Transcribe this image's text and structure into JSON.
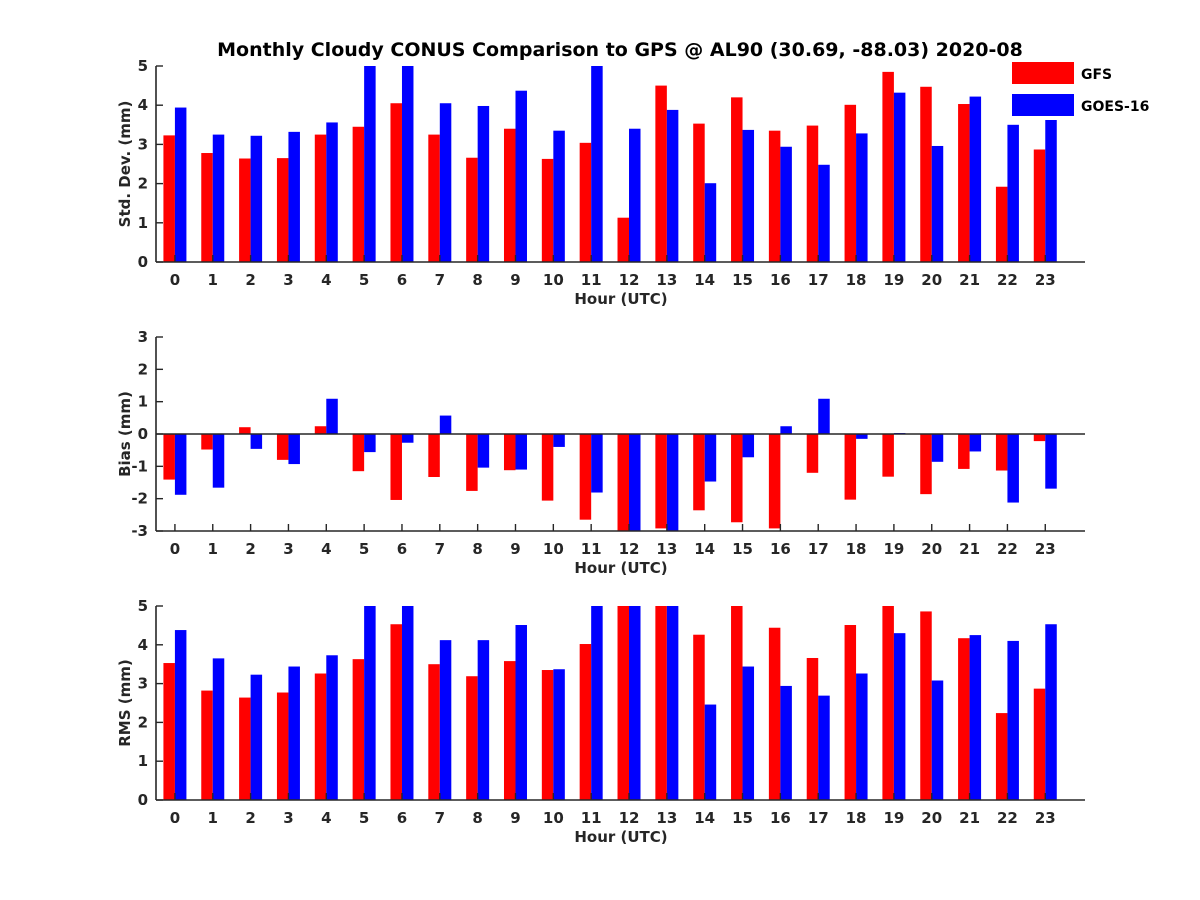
{
  "title": "Monthly Cloudy CONUS Comparison to GPS @ AL90 (30.69, -88.03) 2020-08",
  "legend": [
    {
      "name": "GFS",
      "color": "#ff0000"
    },
    {
      "name": "GOES-16",
      "color": "#0000ff"
    }
  ],
  "chart_data": [
    {
      "type": "bar",
      "title": "Monthly Cloudy CONUS Comparison to GPS @ AL90 (30.69, -88.03) 2020-08",
      "xlabel": "Hour (UTC)",
      "ylabel": "Std. Dev. (mm)",
      "ylim": [
        0,
        5
      ],
      "yticks": [
        "0",
        "1",
        "2",
        "3",
        "4",
        "5"
      ],
      "categories": [
        "0",
        "1",
        "2",
        "3",
        "4",
        "5",
        "6",
        "7",
        "8",
        "9",
        "10",
        "11",
        "12",
        "13",
        "14",
        "15",
        "16",
        "17",
        "18",
        "19",
        "20",
        "21",
        "22",
        "23"
      ],
      "series": [
        {
          "name": "GFS",
          "color": "#ff0000",
          "values": [
            3.23,
            2.78,
            2.64,
            2.65,
            3.25,
            3.45,
            4.05,
            3.25,
            2.66,
            3.4,
            2.63,
            3.04,
            1.13,
            4.5,
            3.53,
            4.2,
            3.35,
            3.48,
            4.01,
            4.85,
            4.47,
            4.03,
            1.92,
            2.87
          ]
        },
        {
          "name": "GOES-16",
          "color": "#0000ff",
          "values": [
            3.94,
            3.25,
            3.22,
            3.32,
            3.56,
            5.0,
            5.0,
            4.05,
            3.98,
            4.37,
            3.35,
            5.0,
            3.4,
            3.88,
            2.01,
            3.37,
            2.94,
            2.48,
            3.28,
            4.32,
            2.96,
            4.22,
            3.5,
            3.88
          ]
        }
      ]
    },
    {
      "type": "bar",
      "xlabel": "Hour (UTC)",
      "ylabel": "Bias (mm)",
      "ylim": [
        -3,
        3
      ],
      "yticks": [
        "-3",
        "-2",
        "-1",
        "0",
        "1",
        "2",
        "3"
      ],
      "categories": [
        "0",
        "1",
        "2",
        "3",
        "4",
        "5",
        "6",
        "7",
        "8",
        "9",
        "10",
        "11",
        "12",
        "13",
        "14",
        "15",
        "16",
        "17",
        "18",
        "19",
        "20",
        "21",
        "22",
        "23"
      ],
      "series": [
        {
          "name": "GFS",
          "color": "#ff0000",
          "values": [
            -1.41,
            -0.48,
            0.21,
            -0.8,
            0.24,
            -1.15,
            -2.04,
            -1.33,
            -1.76,
            -1.12,
            -2.06,
            -2.65,
            -3.0,
            -2.92,
            -2.36,
            -2.73,
            -2.92,
            -1.2,
            -2.03,
            -1.32,
            -1.86,
            -1.08,
            -1.13,
            -0.22
          ]
        },
        {
          "name": "GOES-16",
          "color": "#0000ff",
          "values": [
            -1.88,
            -1.66,
            -0.46,
            -0.93,
            1.09,
            -0.56,
            -0.27,
            0.57,
            -1.04,
            -1.1,
            -0.4,
            -1.81,
            -3.0,
            -3.0,
            -1.47,
            -0.72,
            0.24,
            1.09,
            -0.15,
            0.03,
            -0.86,
            -0.54,
            -2.12,
            -1.69
          ]
        }
      ]
    },
    {
      "type": "bar",
      "xlabel": "Hour (UTC)",
      "ylabel": "RMS (mm)",
      "ylim": [
        0,
        5
      ],
      "yticks": [
        "0",
        "1",
        "2",
        "3",
        "4",
        "5"
      ],
      "categories": [
        "0",
        "1",
        "2",
        "3",
        "4",
        "5",
        "6",
        "7",
        "8",
        "9",
        "10",
        "11",
        "12",
        "13",
        "14",
        "15",
        "16",
        "17",
        "18",
        "19",
        "20",
        "21",
        "22",
        "23"
      ],
      "series": [
        {
          "name": "GFS",
          "color": "#ff0000",
          "values": [
            3.53,
            2.82,
            2.64,
            2.77,
            3.26,
            3.63,
            4.53,
            3.5,
            3.19,
            3.58,
            3.35,
            4.02,
            5.0,
            5.0,
            4.26,
            5.0,
            4.44,
            3.66,
            4.51,
            5.0,
            4.86,
            4.17,
            2.24,
            2.87
          ]
        },
        {
          "name": "GOES-16",
          "color": "#0000ff",
          "values": [
            4.38,
            3.65,
            3.23,
            3.44,
            3.73,
            5.0,
            5.0,
            4.12,
            4.12,
            4.51,
            3.37,
            5.0,
            5.0,
            5.0,
            2.46,
            3.44,
            2.94,
            2.69,
            3.26,
            4.3,
            3.08,
            4.25,
            4.1,
            4.53
          ]
        }
      ]
    }
  ]
}
